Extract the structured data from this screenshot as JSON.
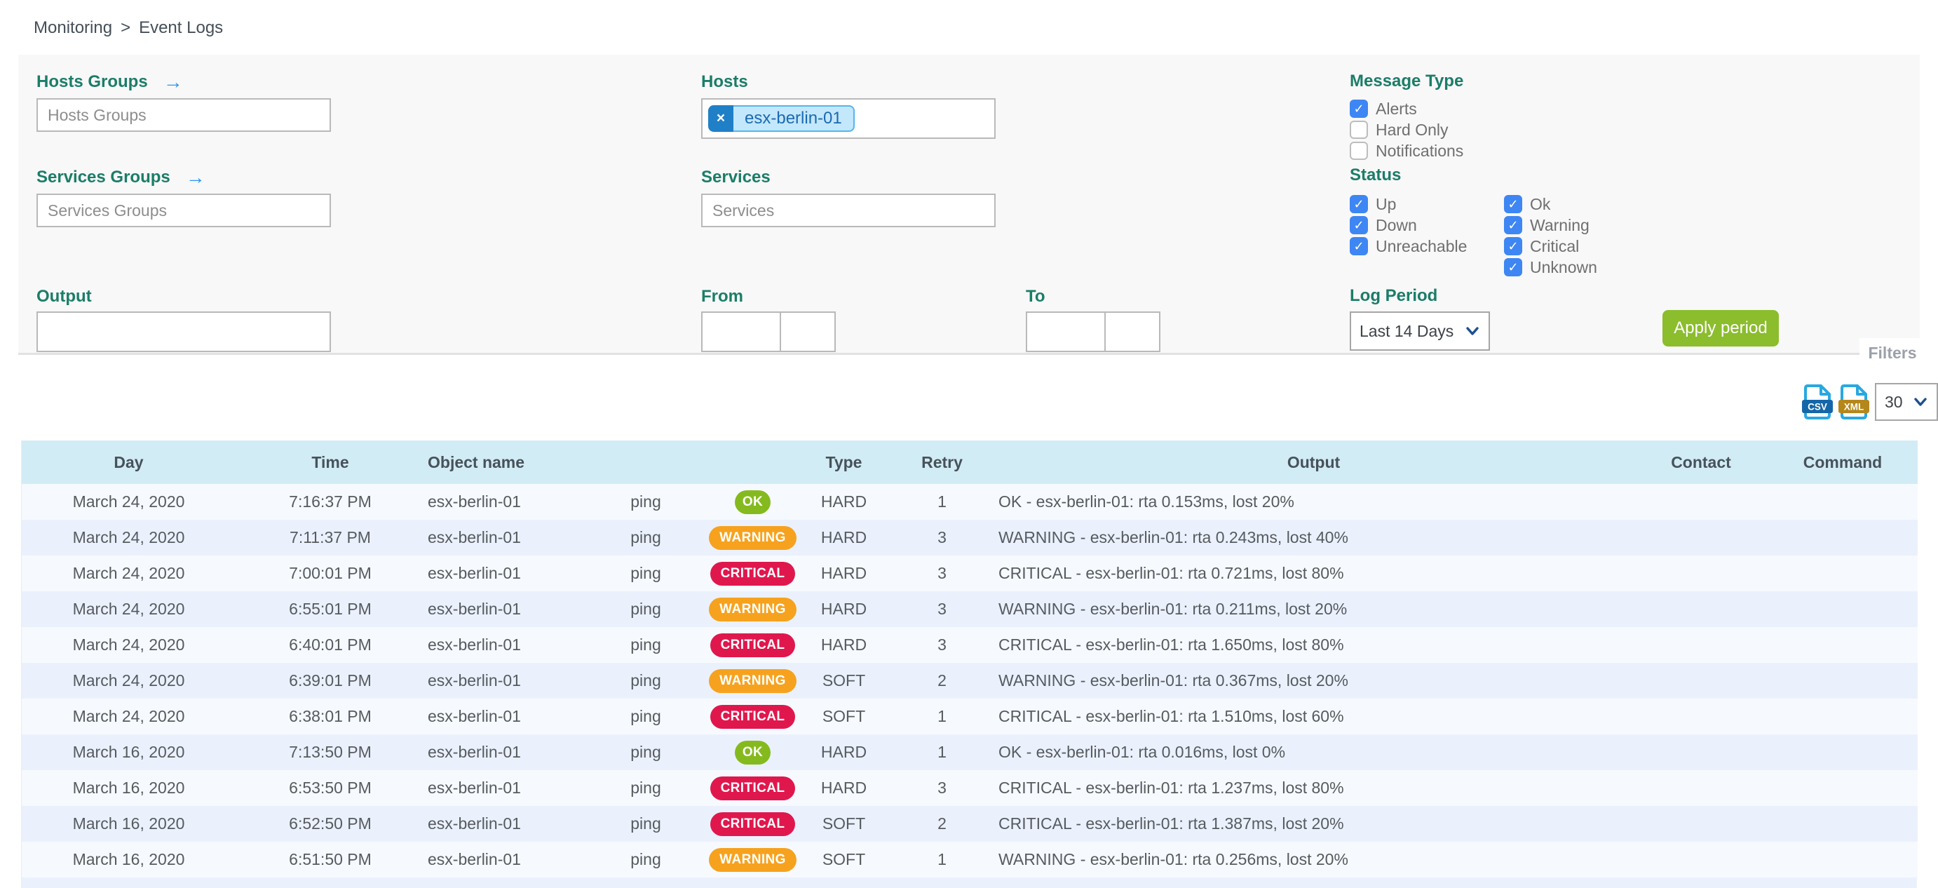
{
  "breadcrumb": {
    "items": [
      "Monitoring",
      "Event Logs"
    ],
    "separator": ">"
  },
  "icons": {
    "filter_arrow": "→",
    "chip_remove": "×"
  },
  "colors": {
    "accent_teal": "#1B7D68",
    "link_blue": "#2D96F0",
    "checkbox_blue": "#3E86F3",
    "apply_green": "#8BBD2D",
    "badge_ok": "#85BA1F",
    "badge_warning": "#F6A21E",
    "badge_critical": "#E0174D",
    "chip_bg": "#C3E7FB",
    "chip_border": "#54B5EF",
    "chip_text": "#1B6AB2",
    "chip_remove_bg": "#1F80C8",
    "header_bg": "#D2ECF6",
    "row_odd": "#F6FAFE",
    "row_even": "#EBF1FC",
    "panel_bg": "#F8F8F8",
    "csv_banner": "#1566A9",
    "xml_banner": "#B5871A",
    "file_blue": "#29A8E0"
  },
  "filters": {
    "hosts_groups": {
      "label": "Hosts Groups",
      "placeholder": "Hosts Groups",
      "value": ""
    },
    "services_groups": {
      "label": "Services Groups",
      "placeholder": "Services Groups",
      "value": ""
    },
    "hosts": {
      "label": "Hosts",
      "selected": [
        "esx-berlin-01"
      ]
    },
    "services": {
      "label": "Services",
      "placeholder": "Services",
      "value": ""
    },
    "output": {
      "label": "Output",
      "value": ""
    },
    "from": {
      "label": "From",
      "date_value": "",
      "time_value": ""
    },
    "to": {
      "label": "To",
      "date_value": "",
      "time_value": ""
    },
    "message_type": {
      "label": "Message Type",
      "options": [
        {
          "label": "Alerts",
          "checked": true
        },
        {
          "label": "Hard Only",
          "checked": false
        },
        {
          "label": "Notifications",
          "checked": false
        }
      ]
    },
    "status": {
      "label": "Status",
      "col1": [
        {
          "label": "Up",
          "checked": true
        },
        {
          "label": "Down",
          "checked": true
        },
        {
          "label": "Unreachable",
          "checked": true
        }
      ],
      "col2": [
        {
          "label": "Ok",
          "checked": true
        },
        {
          "label": "Warning",
          "checked": true
        },
        {
          "label": "Critical",
          "checked": true
        },
        {
          "label": "Unknown",
          "checked": true
        }
      ]
    },
    "log_period": {
      "label": "Log Period",
      "value": "Last 14 Days"
    },
    "apply_button": "Apply period",
    "filters_tab": "Filters"
  },
  "toolbar": {
    "csv_label": "CSV",
    "xml_label": "XML",
    "page_size": "30"
  },
  "table": {
    "headers": [
      "Day",
      "Time",
      "Object name",
      "",
      "",
      "Type",
      "Retry",
      "Output",
      "Contact",
      "Command"
    ],
    "rows": [
      {
        "day": "March 24, 2020",
        "time": "7:16:37 PM",
        "object": "esx-berlin-01",
        "service": "ping",
        "status": "OK",
        "type": "HARD",
        "retry": "1",
        "output": "OK - esx-berlin-01: rta 0.153ms, lost 20%",
        "contact": "",
        "command": ""
      },
      {
        "day": "March 24, 2020",
        "time": "7:11:37 PM",
        "object": "esx-berlin-01",
        "service": "ping",
        "status": "WARNING",
        "type": "HARD",
        "retry": "3",
        "output": "WARNING - esx-berlin-01: rta 0.243ms, lost 40%",
        "contact": "",
        "command": ""
      },
      {
        "day": "March 24, 2020",
        "time": "7:00:01 PM",
        "object": "esx-berlin-01",
        "service": "ping",
        "status": "CRITICAL",
        "type": "HARD",
        "retry": "3",
        "output": "CRITICAL - esx-berlin-01: rta 0.721ms, lost 80%",
        "contact": "",
        "command": ""
      },
      {
        "day": "March 24, 2020",
        "time": "6:55:01 PM",
        "object": "esx-berlin-01",
        "service": "ping",
        "status": "WARNING",
        "type": "HARD",
        "retry": "3",
        "output": "WARNING - esx-berlin-01: rta 0.211ms, lost 20%",
        "contact": "",
        "command": ""
      },
      {
        "day": "March 24, 2020",
        "time": "6:40:01 PM",
        "object": "esx-berlin-01",
        "service": "ping",
        "status": "CRITICAL",
        "type": "HARD",
        "retry": "3",
        "output": "CRITICAL - esx-berlin-01: rta 1.650ms, lost 80%",
        "contact": "",
        "command": ""
      },
      {
        "day": "March 24, 2020",
        "time": "6:39:01 PM",
        "object": "esx-berlin-01",
        "service": "ping",
        "status": "WARNING",
        "type": "SOFT",
        "retry": "2",
        "output": "WARNING - esx-berlin-01: rta 0.367ms, lost 20%",
        "contact": "",
        "command": ""
      },
      {
        "day": "March 24, 2020",
        "time": "6:38:01 PM",
        "object": "esx-berlin-01",
        "service": "ping",
        "status": "CRITICAL",
        "type": "SOFT",
        "retry": "1",
        "output": "CRITICAL - esx-berlin-01: rta 1.510ms, lost 60%",
        "contact": "",
        "command": ""
      },
      {
        "day": "March 16, 2020",
        "time": "7:13:50 PM",
        "object": "esx-berlin-01",
        "service": "ping",
        "status": "OK",
        "type": "HARD",
        "retry": "1",
        "output": "OK - esx-berlin-01: rta 0.016ms, lost 0%",
        "contact": "",
        "command": ""
      },
      {
        "day": "March 16, 2020",
        "time": "6:53:50 PM",
        "object": "esx-berlin-01",
        "service": "ping",
        "status": "CRITICAL",
        "type": "HARD",
        "retry": "3",
        "output": "CRITICAL - esx-berlin-01: rta 1.237ms, lost 80%",
        "contact": "",
        "command": ""
      },
      {
        "day": "March 16, 2020",
        "time": "6:52:50 PM",
        "object": "esx-berlin-01",
        "service": "ping",
        "status": "CRITICAL",
        "type": "SOFT",
        "retry": "2",
        "output": "CRITICAL - esx-berlin-01: rta 1.387ms, lost 20%",
        "contact": "",
        "command": ""
      },
      {
        "day": "March 16, 2020",
        "time": "6:51:50 PM",
        "object": "esx-berlin-01",
        "service": "ping",
        "status": "WARNING",
        "type": "SOFT",
        "retry": "1",
        "output": "WARNING - esx-berlin-01: rta 0.256ms, lost 20%",
        "contact": "",
        "command": ""
      }
    ]
  }
}
